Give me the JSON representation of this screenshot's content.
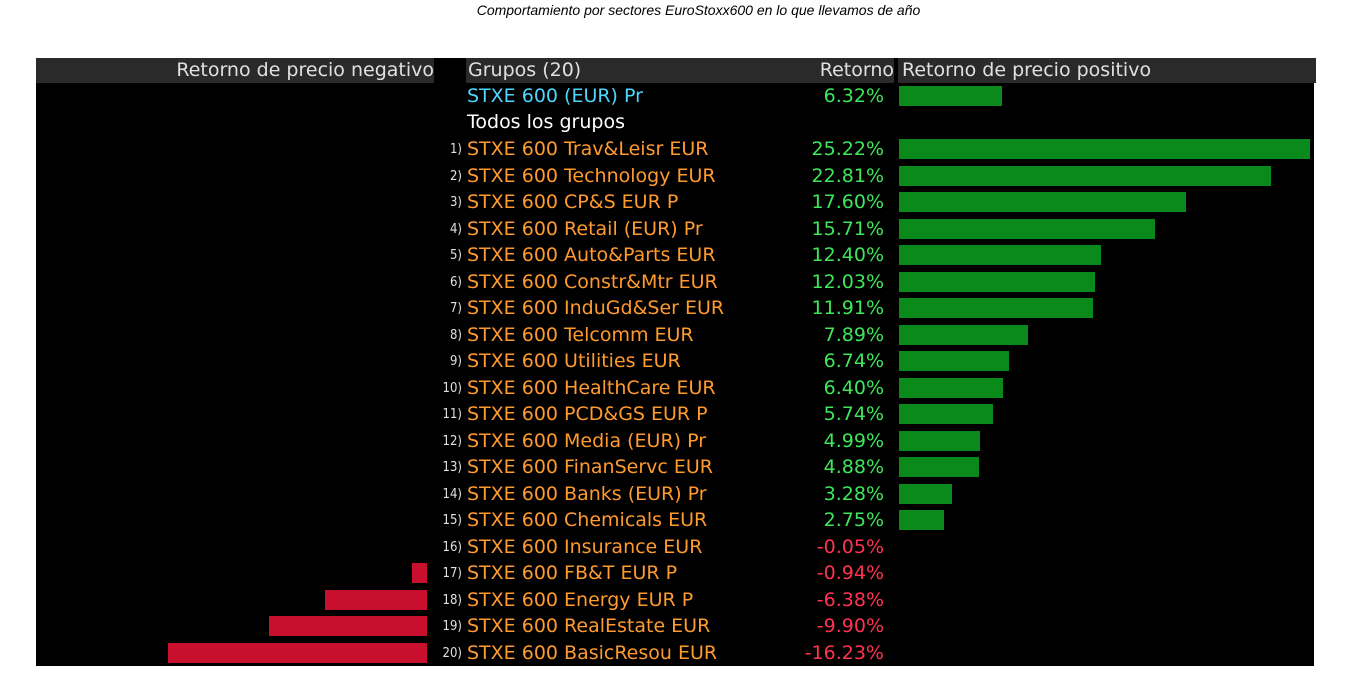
{
  "title": "Comportamiento por sectores EuroStoxx600 en lo que llevamos de año",
  "headers": {
    "negative": "Retorno de precio negativo",
    "groups": "Grupos (20)",
    "return": "Retorno",
    "positive": "Retorno de precio positivo"
  },
  "benchmark": {
    "name": "STXE 600 (EUR) Pr",
    "return_label": "6.32%",
    "value": 6.32
  },
  "section_label": "Todos los grupos",
  "colors": {
    "positive": "#0b8a1c",
    "negative": "#c8102e",
    "positive_text": "#3ee65a",
    "negative_text": "#ff3350",
    "name_text": "#ff9a2e",
    "benchmark_text": "#4fd6ff"
  },
  "chart_data": {
    "type": "bar",
    "orientation": "horizontal",
    "categories": [
      "STXE 600 Trav&Leisr EUR",
      "STXE 600 Technology EUR",
      "STXE 600 CP&S EUR P",
      "STXE 600 Retail (EUR) Pr",
      "STXE 600 Auto&Parts EUR",
      "STXE 600 Constr&Mtr EUR",
      "STXE 600 InduGd&Ser EUR",
      "STXE 600 Telcomm EUR",
      "STXE 600 Utilities EUR",
      "STXE 600 HealthCare EUR",
      "STXE 600 PCD&GS EUR P",
      "STXE 600 Media (EUR) Pr",
      "STXE 600 FinanServc EUR",
      "STXE 600 Banks (EUR) Pr",
      "STXE 600 Chemicals EUR",
      "STXE 600 Insurance EUR",
      "STXE 600 FB&T EUR P",
      "STXE 600 Energy EUR P",
      "STXE 600 RealEstate EUR",
      "STXE 600 BasicResou EUR"
    ],
    "ranks": [
      "1)",
      "2)",
      "3)",
      "4)",
      "5)",
      "6)",
      "7)",
      "8)",
      "9)",
      "10)",
      "11)",
      "12)",
      "13)",
      "14)",
      "15)",
      "16)",
      "17)",
      "18)",
      "19)",
      "20)"
    ],
    "labels": [
      "25.22%",
      "22.81%",
      "17.60%",
      "15.71%",
      "12.40%",
      "12.03%",
      "11.91%",
      "7.89%",
      "6.74%",
      "6.40%",
      "5.74%",
      "4.99%",
      "4.88%",
      "3.28%",
      "2.75%",
      "-0.05%",
      "-0.94%",
      "-6.38%",
      "-9.90%",
      "-16.23%"
    ],
    "values": [
      25.22,
      22.81,
      17.6,
      15.71,
      12.4,
      12.03,
      11.91,
      7.89,
      6.74,
      6.4,
      5.74,
      4.99,
      4.88,
      3.28,
      2.75,
      -0.05,
      -0.94,
      -6.38,
      -9.9,
      -16.23
    ]
  }
}
